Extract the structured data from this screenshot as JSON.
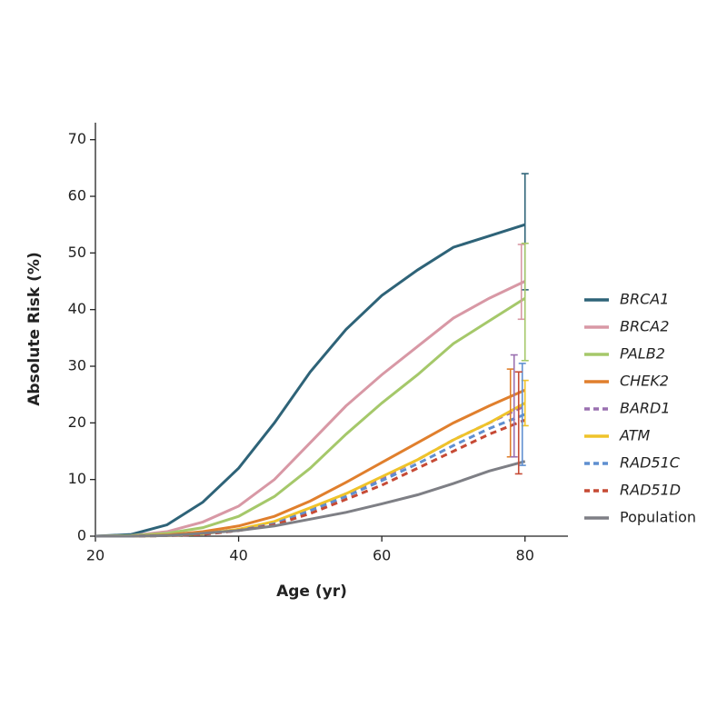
{
  "chart_data": {
    "type": "line",
    "x_label": "Age (yr)",
    "y_label": "Absolute Risk (%)",
    "x": [
      20,
      25,
      30,
      35,
      40,
      45,
      50,
      55,
      60,
      65,
      70,
      75,
      80
    ],
    "xlim": [
      20,
      86
    ],
    "xticks": [
      20,
      40,
      60,
      80
    ],
    "ylim": [
      0,
      73
    ],
    "yticks": [
      0,
      10,
      20,
      30,
      40,
      50,
      60,
      70
    ],
    "legend": "right",
    "series": [
      {
        "name": "BRCA1",
        "color": "#2e6378",
        "italic": true,
        "dashed": false,
        "values": [
          0,
          0.3,
          2,
          6,
          12,
          20,
          29,
          36.5,
          42.5,
          47,
          51,
          53,
          55
        ],
        "ci": [
          43.5,
          64
        ]
      },
      {
        "name": "BRCA2",
        "color": "#d898a5",
        "italic": true,
        "dashed": false,
        "values": [
          0,
          0.1,
          0.8,
          2.5,
          5.3,
          10,
          16.5,
          23,
          28.5,
          33.5,
          38.5,
          42,
          45
        ],
        "ci": [
          38.3,
          51.5
        ]
      },
      {
        "name": "PALB2",
        "color": "#a5c86a",
        "italic": true,
        "dashed": false,
        "values": [
          0,
          0.1,
          0.5,
          1.5,
          3.5,
          7,
          12,
          18,
          23.5,
          28.5,
          34,
          38,
          42
        ],
        "ci": [
          31,
          51.7
        ]
      },
      {
        "name": "CHEK2",
        "color": "#e07f2d",
        "italic": true,
        "dashed": false,
        "values": [
          0,
          0,
          0.2,
          0.8,
          1.8,
          3.5,
          6.2,
          9.5,
          13,
          16.5,
          20,
          23,
          25.8
        ],
        "ci": [
          14,
          29.5
        ]
      },
      {
        "name": "BARD1",
        "color": "#9a70b0",
        "italic": true,
        "dashed": true,
        "values": [
          0,
          0,
          0.1,
          0.4,
          1.2,
          2.4,
          4.8,
          7.5,
          10.2,
          13.5,
          17,
          20,
          23
        ],
        "ci": [
          14,
          32
        ]
      },
      {
        "name": "ATM",
        "color": "#efc32a",
        "italic": true,
        "dashed": false,
        "values": [
          0,
          0,
          0.1,
          0.4,
          1.2,
          2.6,
          5,
          7.5,
          10.5,
          13.5,
          17,
          20,
          23.5
        ],
        "ci": [
          19.5,
          27.5
        ]
      },
      {
        "name": "RAD51C",
        "color": "#5f8fd0",
        "italic": true,
        "dashed": true,
        "values": [
          0,
          0,
          0.1,
          0.3,
          1,
          2.2,
          4.5,
          7,
          9.8,
          12.8,
          16,
          19,
          21.5
        ],
        "ci": [
          12.5,
          30.5
        ]
      },
      {
        "name": "RAD51D",
        "color": "#c64a35",
        "italic": true,
        "dashed": true,
        "values": [
          0,
          0,
          0.1,
          0.3,
          1,
          2,
          4,
          6.5,
          9,
          12,
          15,
          18,
          20.5
        ],
        "ci": [
          11,
          29
        ]
      },
      {
        "name": "Population",
        "color": "#7e7f85",
        "italic": false,
        "dashed": false,
        "values": [
          0,
          0,
          0.1,
          0.5,
          1,
          1.8,
          3,
          4.2,
          5.7,
          7.3,
          9.3,
          11.5,
          13.2
        ],
        "ci": null
      }
    ]
  }
}
